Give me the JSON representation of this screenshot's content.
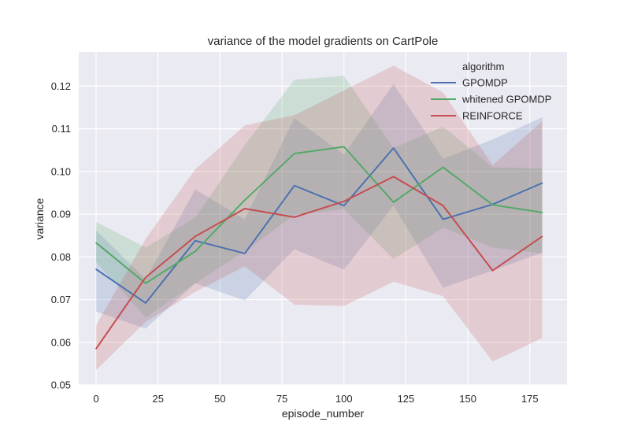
{
  "chart_data": {
    "type": "line",
    "title": "variance of the model gradients on CartPole",
    "xlabel": "episode_number",
    "ylabel": "variance",
    "xlim": [
      -7,
      190
    ],
    "ylim": [
      0.05,
      0.128
    ],
    "x_ticks": [
      "0",
      "25",
      "50",
      "75",
      "100",
      "125",
      "150",
      "175"
    ],
    "y_ticks": [
      "0.05",
      "0.06",
      "0.07",
      "0.08",
      "0.09",
      "0.10",
      "0.11",
      "0.12"
    ],
    "grid": true,
    "legend_title": "algorithm",
    "legend_position": "top-right",
    "x": [
      0,
      20,
      40,
      60,
      80,
      100,
      120,
      140,
      160,
      180
    ],
    "series": [
      {
        "name": "GPOMDP",
        "color": "#4c72b0",
        "values": [
          0.0771,
          0.0692,
          0.0838,
          0.0808,
          0.0967,
          0.092,
          0.1055,
          0.0888,
          0.0923,
          0.0973
        ],
        "lower": [
          0.0672,
          0.0632,
          0.0738,
          0.0698,
          0.0818,
          0.077,
          0.092,
          0.0728,
          0.0768,
          0.081
        ],
        "upper": [
          0.0862,
          0.0748,
          0.0958,
          0.0888,
          0.1125,
          0.104,
          0.1205,
          0.103,
          0.1075,
          0.1127
        ]
      },
      {
        "name": "whitened GPOMDP",
        "color": "#55a868",
        "values": [
          0.0833,
          0.0738,
          0.0813,
          0.0933,
          0.1042,
          0.1058,
          0.0928,
          0.101,
          0.0922,
          0.0904
        ],
        "lower": [
          0.0788,
          0.0658,
          0.0738,
          0.0813,
          0.0898,
          0.0912,
          0.0795,
          0.0868,
          0.0822,
          0.0808
        ],
        "upper": [
          0.0882,
          0.0822,
          0.0892,
          0.1062,
          0.1215,
          0.1224,
          0.1055,
          0.1105,
          0.101,
          0.1008
        ]
      },
      {
        "name": "REINFORCE",
        "color": "#c44e52",
        "values": [
          0.0585,
          0.0752,
          0.0848,
          0.0913,
          0.0893,
          0.093,
          0.0988,
          0.092,
          0.0768,
          0.0848
        ],
        "lower": [
          0.0535,
          0.0648,
          0.0718,
          0.0778,
          0.0688,
          0.0685,
          0.0742,
          0.0708,
          0.0555,
          0.061
        ],
        "upper": [
          0.064,
          0.0842,
          0.1005,
          0.1108,
          0.1132,
          0.119,
          0.1248,
          0.1185,
          0.1015,
          0.1118
        ]
      }
    ]
  }
}
